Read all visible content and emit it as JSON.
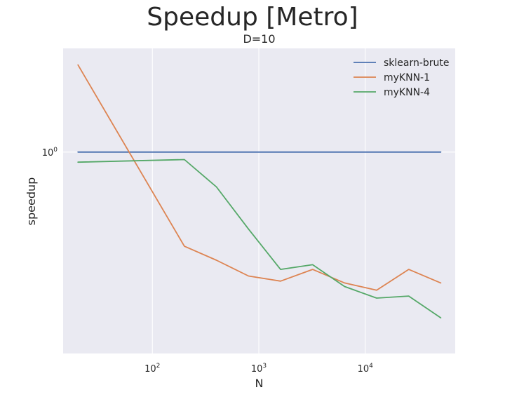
{
  "figure": {
    "suptitle": "Speedup [Metro]",
    "subtitle": "D=10"
  },
  "chart_data": {
    "type": "line",
    "title": "D=10",
    "xlabel": "N",
    "ylabel": "speedup",
    "xscale": "log",
    "yscale": "log",
    "xlim": [
      14.5,
      70000
    ],
    "ylim": [
      0.19,
      2.35
    ],
    "grid": true,
    "legend_position": "top-right",
    "x_ticks": [
      {
        "value": 100,
        "base": "10",
        "exp": "2"
      },
      {
        "value": 1000,
        "base": "10",
        "exp": "3"
      },
      {
        "value": 10000,
        "base": "10",
        "exp": "4"
      }
    ],
    "y_ticks": [
      {
        "value": 1,
        "base": "10",
        "exp": "0"
      }
    ],
    "x": [
      20,
      200,
      400,
      800,
      1600,
      3200,
      6400,
      12800,
      25600,
      51200
    ],
    "series": [
      {
        "name": "sklearn-brute",
        "color": "#4c72b0",
        "values": [
          1,
          1,
          1,
          1,
          1,
          1,
          1,
          1,
          1,
          1
        ]
      },
      {
        "name": "myKNN-1",
        "color": "#dd8452",
        "values": [
          2.05,
          0.46,
          0.41,
          0.36,
          0.345,
          0.38,
          0.34,
          0.32,
          0.38,
          0.34
        ]
      },
      {
        "name": "myKNN-4",
        "color": "#55a868",
        "values": [
          0.92,
          0.94,
          0.75,
          0.53,
          0.38,
          0.395,
          0.33,
          0.3,
          0.305,
          0.255
        ]
      }
    ]
  }
}
